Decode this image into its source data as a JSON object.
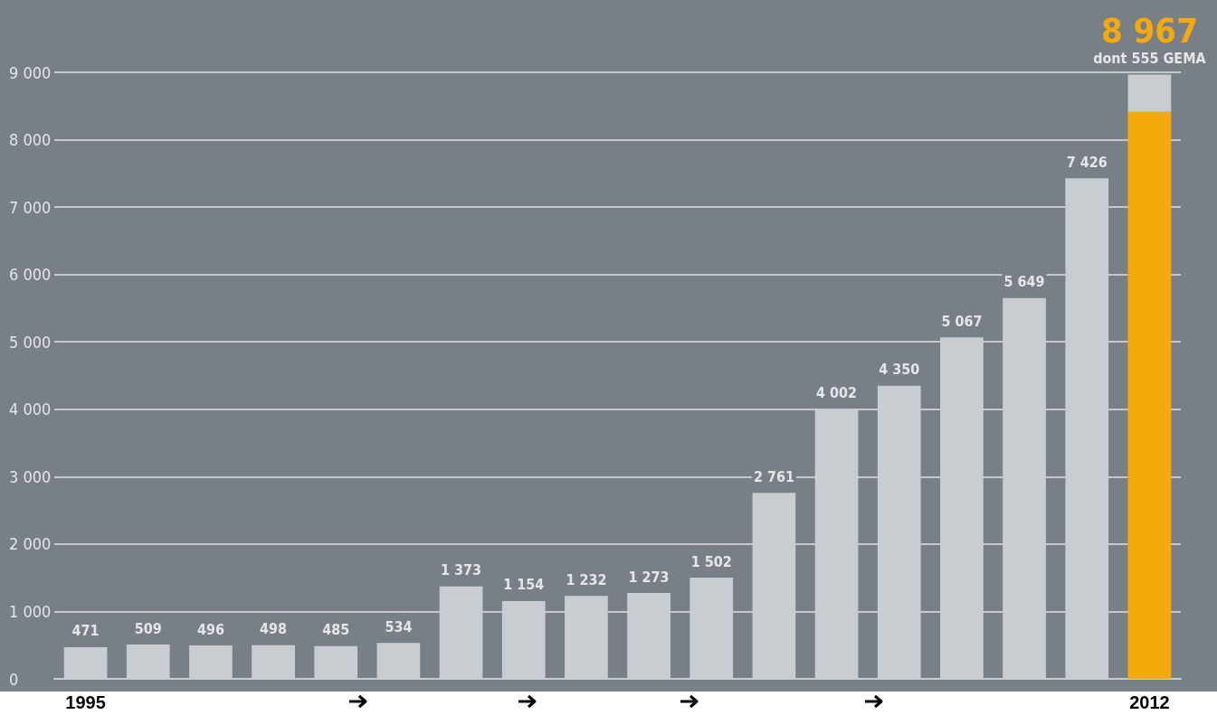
{
  "chart_data": {
    "type": "bar",
    "stacked": true,
    "categories": [
      "1995",
      null,
      null,
      null,
      null,
      null,
      null,
      null,
      null,
      null,
      null,
      null,
      null,
      null,
      null,
      null,
      null,
      "2012"
    ],
    "series": [
      {
        "colors": [
          "#c8cdd1",
          "#c8cdd1",
          "#c8cdd1",
          "#c8cdd1",
          "#c8cdd1",
          "#c8cdd1",
          "#c8cdd1",
          "#c8cdd1",
          "#c8cdd1",
          "#c8cdd1",
          "#c8cdd1",
          "#c8cdd1",
          "#c8cdd1",
          "#c8cdd1",
          "#c8cdd1",
          "#c8cdd1",
          "#c8cdd1",
          "#f5aa0c"
        ],
        "values": [
          471,
          509,
          496,
          498,
          485,
          534,
          1373,
          1154,
          1232,
          1273,
          1502,
          2761,
          4002,
          4350,
          5067,
          5649,
          7426,
          8412
        ],
        "value_labels": [
          "471",
          "509",
          "496",
          "498",
          "485",
          "534",
          "1 373",
          "1 154",
          "1 232",
          "1 273",
          "1 502",
          "2 761",
          "4 002",
          "4 350",
          "5 067",
          "5 649",
          "7 426",
          null
        ]
      },
      {
        "color": "#c8cdd1",
        "values": [
          null,
          null,
          null,
          null,
          null,
          null,
          null,
          null,
          null,
          null,
          null,
          null,
          null,
          null,
          null,
          null,
          null,
          555
        ],
        "value_labels": [
          null,
          null,
          null,
          null,
          null,
          null,
          null,
          null,
          null,
          null,
          null,
          null,
          null,
          null,
          null,
          null,
          null,
          "dont 555 GEMA"
        ]
      }
    ],
    "totals": [
      null,
      null,
      null,
      null,
      null,
      null,
      null,
      null,
      null,
      null,
      null,
      null,
      null,
      null,
      null,
      null,
      null,
      "8 967"
    ],
    "ylim": [
      0,
      9000
    ],
    "yticks": [
      0,
      {
        "value": 1000,
        "label": "1 000"
      },
      {
        "value": 2000,
        "label": "2 000"
      },
      {
        "value": 3000,
        "label": "3 000"
      },
      {
        "value": 4000,
        "label": "4 000"
      },
      {
        "value": 5000,
        "label": "5 000"
      },
      {
        "value": 6000,
        "label": "6 000"
      },
      {
        "value": 7000,
        "label": "7 000"
      },
      {
        "value": 8000,
        "label": "8 000"
      },
      {
        "value": 9000,
        "label": "9 000"
      }
    ],
    "grid": "y"
  }
}
